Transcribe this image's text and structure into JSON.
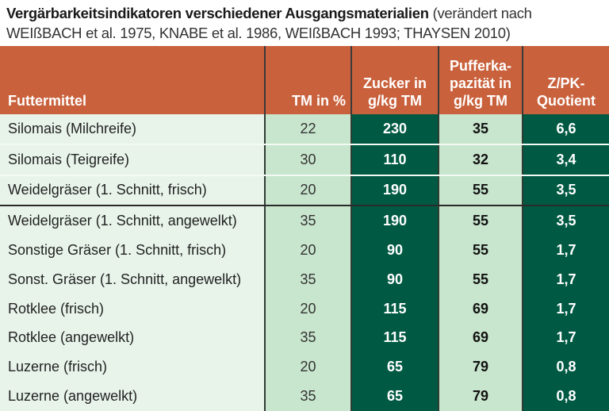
{
  "title": {
    "bold": "Vergärbarkeitsindikatoren verschiedener Ausgangsmaterialien",
    "source": "(verändert nach WEIßBACH et al. 1975, KNABE et al. 1986, WEIßBACH 1993; THAYSEN 2010)"
  },
  "headers": [
    "Futtermittel",
    "TM in %",
    "Zucker in g/kg TM",
    "Pufferka-pazität in g/kg TM",
    "Z/PK-Quotient"
  ],
  "header_lines": {
    "zucker": [
      "Zucker in",
      "g/kg TM"
    ],
    "puffer": [
      "Pufferka-",
      "pazität in",
      "g/kg TM"
    ],
    "quotient": [
      "Z/PK-",
      "Quotient"
    ]
  },
  "rows": [
    [
      "Silomais (Milchreife)",
      "22",
      "230",
      "35",
      "6,6"
    ],
    [
      "Silomais (Teigreife)",
      "30",
      "110",
      "32",
      "3,4"
    ],
    [
      "Weidelgräser (1. Schnitt, frisch)",
      "20",
      "190",
      "55",
      "3,5"
    ],
    [
      "Weidelgräser (1. Schnitt, angewelkt)",
      "35",
      "190",
      "55",
      "3,5"
    ],
    [
      "Sonstige Gräser (1. Schnitt, frisch)",
      "20",
      "90",
      "55",
      "1,7"
    ],
    [
      "Sonst. Gräser (1. Schnitt, angewelkt)",
      "35",
      "90",
      "55",
      "1,7"
    ],
    [
      "Rotklee (frisch)",
      "20",
      "115",
      "69",
      "1,7"
    ],
    [
      "Rotklee (angewelkt)",
      "35",
      "115",
      "69",
      "1,7"
    ],
    [
      "Luzerne (frisch)",
      "20",
      "65",
      "79",
      "0,8"
    ],
    [
      "Luzerne (angewelkt)",
      "35",
      "65",
      "79",
      "0,8"
    ]
  ],
  "colors": {
    "header": "#c9613c",
    "dark_green": "#005a43",
    "light_green": "#c8e5cd",
    "pale_green": "#e8f4ea"
  }
}
